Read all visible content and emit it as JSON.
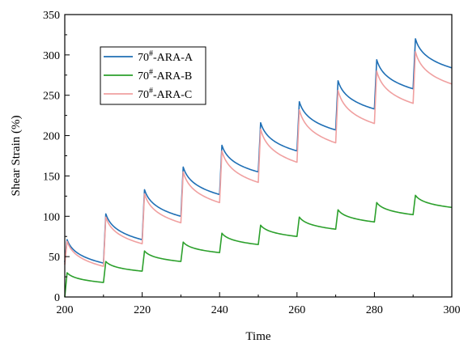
{
  "chart_data": {
    "type": "line",
    "title": "",
    "xlabel": "Time",
    "ylabel": "Shear Strain (%)",
    "xlim": [
      200,
      300
    ],
    "ylim": [
      0,
      350
    ],
    "x_ticks": [
      200,
      220,
      240,
      260,
      280,
      300
    ],
    "y_ticks": [
      0,
      50,
      100,
      150,
      200,
      250,
      300,
      350
    ],
    "grid": false,
    "legend_position": "top-left",
    "cycle_period": 10,
    "cycle_starts": [
      200,
      210,
      220,
      230,
      240,
      250,
      260,
      270,
      280,
      290
    ],
    "series": [
      {
        "name_base": "70",
        "name_sup": "#",
        "name_suffix": "-ARA-A",
        "color": "#1f6fb5",
        "start_value": 43,
        "peaks": [
          71,
          103,
          133,
          161,
          188,
          216,
          242,
          268,
          294,
          320
        ],
        "troughs": [
          42,
          71,
          100,
          127,
          155,
          181,
          207,
          233,
          258,
          284
        ]
      },
      {
        "name_base": "70",
        "name_sup": "#",
        "name_suffix": "-ARA-B",
        "color": "#2ca02c",
        "start_value": 0,
        "peaks": [
          30,
          44,
          57,
          68,
          79,
          89,
          99,
          108,
          117,
          126
        ],
        "troughs": [
          18,
          32,
          44,
          55,
          65,
          75,
          84,
          93,
          102,
          111
        ]
      },
      {
        "name_base": "70",
        "name_sup": "#",
        "name_suffix": "-ARA-C",
        "color": "#f0a0a0",
        "start_value": 40,
        "peaks": [
          69,
          99,
          128,
          155,
          181,
          208,
          232,
          256,
          280,
          304
        ],
        "troughs": [
          38,
          66,
          92,
          117,
          142,
          167,
          191,
          215,
          240,
          264
        ]
      }
    ]
  }
}
